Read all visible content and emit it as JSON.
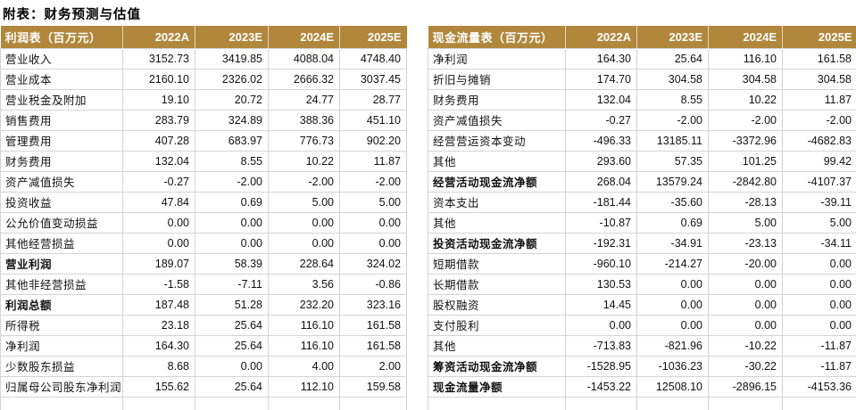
{
  "title": "附表：财务预测与估值",
  "columns": [
    "2022A",
    "2023E",
    "2024E",
    "2025E"
  ],
  "colors": {
    "header_bg": "#B1873C",
    "header_text": "#FFFFFF",
    "grid_line": "#D4D4D4",
    "body_text": "#111111"
  },
  "income_statement": {
    "header": "利润表（百万元）",
    "rows": [
      {
        "label": "营业收入",
        "bold": false,
        "values": [
          "3152.73",
          "3419.85",
          "4088.04",
          "4748.40"
        ]
      },
      {
        "label": "营业成本",
        "bold": false,
        "values": [
          "2160.10",
          "2326.02",
          "2666.32",
          "3037.45"
        ]
      },
      {
        "label": "营业税金及附加",
        "bold": false,
        "values": [
          "19.10",
          "20.72",
          "24.77",
          "28.77"
        ]
      },
      {
        "label": "销售费用",
        "bold": false,
        "values": [
          "283.79",
          "324.89",
          "388.36",
          "451.10"
        ]
      },
      {
        "label": "管理费用",
        "bold": false,
        "values": [
          "407.28",
          "683.97",
          "776.73",
          "902.20"
        ]
      },
      {
        "label": "财务费用",
        "bold": false,
        "values": [
          "132.04",
          "8.55",
          "10.22",
          "11.87"
        ]
      },
      {
        "label": "资产减值损失",
        "bold": false,
        "values": [
          "-0.27",
          "-2.00",
          "-2.00",
          "-2.00"
        ]
      },
      {
        "label": "投资收益",
        "bold": false,
        "values": [
          "47.84",
          "0.69",
          "5.00",
          "5.00"
        ]
      },
      {
        "label": "公允价值变动损益",
        "bold": false,
        "values": [
          "0.00",
          "0.00",
          "0.00",
          "0.00"
        ]
      },
      {
        "label": "其他经营损益",
        "bold": false,
        "values": [
          "0.00",
          "0.00",
          "0.00",
          "0.00"
        ]
      },
      {
        "label": "营业利润",
        "bold": true,
        "values": [
          "189.07",
          "58.39",
          "228.64",
          "324.02"
        ]
      },
      {
        "label": "其他非经营损益",
        "bold": false,
        "values": [
          "-1.58",
          "-7.11",
          "3.56",
          "-0.86"
        ]
      },
      {
        "label": "利润总额",
        "bold": true,
        "values": [
          "187.48",
          "51.28",
          "232.20",
          "323.16"
        ]
      },
      {
        "label": "所得税",
        "bold": false,
        "values": [
          "23.18",
          "25.64",
          "116.10",
          "161.58"
        ]
      },
      {
        "label": "净利润",
        "bold": false,
        "values": [
          "164.30",
          "25.64",
          "116.10",
          "161.58"
        ]
      },
      {
        "label": "少数股东损益",
        "bold": false,
        "values": [
          "8.68",
          "0.00",
          "4.00",
          "2.00"
        ]
      },
      {
        "label": "归属母公司股东净利润",
        "bold": false,
        "values": [
          "155.62",
          "25.64",
          "112.10",
          "159.58"
        ]
      }
    ]
  },
  "cash_flow": {
    "header": "现金流量表（百万元）",
    "rows": [
      {
        "label": "净利润",
        "bold": false,
        "values": [
          "164.30",
          "25.64",
          "116.10",
          "161.58"
        ]
      },
      {
        "label": "折旧与摊销",
        "bold": false,
        "values": [
          "174.70",
          "304.58",
          "304.58",
          "304.58"
        ]
      },
      {
        "label": "财务费用",
        "bold": false,
        "values": [
          "132.04",
          "8.55",
          "10.22",
          "11.87"
        ]
      },
      {
        "label": "资产减值损失",
        "bold": false,
        "values": [
          "-0.27",
          "-2.00",
          "-2.00",
          "-2.00"
        ]
      },
      {
        "label": "经营营运资本变动",
        "bold": false,
        "values": [
          "-496.33",
          "13185.11",
          "-3372.96",
          "-4682.83"
        ]
      },
      {
        "label": "其他",
        "bold": false,
        "values": [
          "293.60",
          "57.35",
          "101.25",
          "99.42"
        ]
      },
      {
        "label": "经营活动现金流净额",
        "bold": true,
        "values": [
          "268.04",
          "13579.24",
          "-2842.80",
          "-4107.37"
        ]
      },
      {
        "label": "资本支出",
        "bold": false,
        "values": [
          "-181.44",
          "-35.60",
          "-28.13",
          "-39.11"
        ]
      },
      {
        "label": "其他",
        "bold": false,
        "values": [
          "-10.87",
          "0.69",
          "5.00",
          "5.00"
        ]
      },
      {
        "label": "投资活动现金流净额",
        "bold": true,
        "values": [
          "-192.31",
          "-34.91",
          "-23.13",
          "-34.11"
        ]
      },
      {
        "label": "短期借款",
        "bold": false,
        "values": [
          "-960.10",
          "-214.27",
          "-20.00",
          "0.00"
        ]
      },
      {
        "label": "长期借款",
        "bold": false,
        "values": [
          "130.53",
          "0.00",
          "0.00",
          "0.00"
        ]
      },
      {
        "label": "股权融资",
        "bold": false,
        "values": [
          "14.45",
          "0.00",
          "0.00",
          "0.00"
        ]
      },
      {
        "label": "支付股利",
        "bold": false,
        "values": [
          "0.00",
          "0.00",
          "0.00",
          "0.00"
        ]
      },
      {
        "label": "其他",
        "bold": false,
        "values": [
          "-713.83",
          "-821.96",
          "-10.22",
          "-11.87"
        ]
      },
      {
        "label": "筹资活动现金流净额",
        "bold": true,
        "values": [
          "-1528.95",
          "-1036.23",
          "-30.22",
          "-11.87"
        ]
      },
      {
        "label": "现金流量净额",
        "bold": true,
        "values": [
          "-1453.22",
          "12508.10",
          "-2896.15",
          "-4153.36"
        ]
      }
    ]
  }
}
